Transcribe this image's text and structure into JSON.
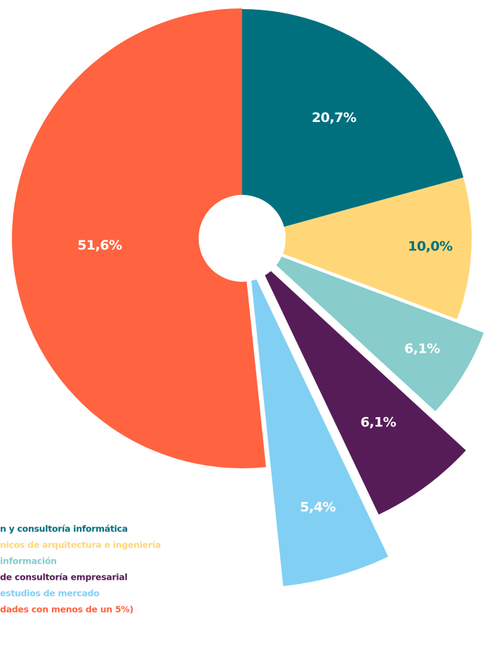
{
  "chart_data": {
    "type": "pie",
    "categories": [
      "n y consultoría informática",
      "nicos de arquitectura e ingeniería",
      "información",
      "de consultoría empresarial",
      "estudios de mercado",
      "dades con menos de un 5%)"
    ],
    "values": [
      20.7,
      10.0,
      6.1,
      6.1,
      5.4,
      51.6
    ],
    "value_labels": [
      "20,7%",
      "10,0%",
      "6,1%",
      "6,1%",
      "5,4%",
      "51,6%"
    ],
    "colors": [
      "#00707f",
      "#ffd778",
      "#88cccc",
      "#561c58",
      "#82cff4",
      "#ff6340"
    ],
    "label_colors": [
      "#ffffff",
      "#00707f",
      "#ffffff",
      "#ffffff",
      "#ffffff",
      "#ffffff"
    ]
  }
}
